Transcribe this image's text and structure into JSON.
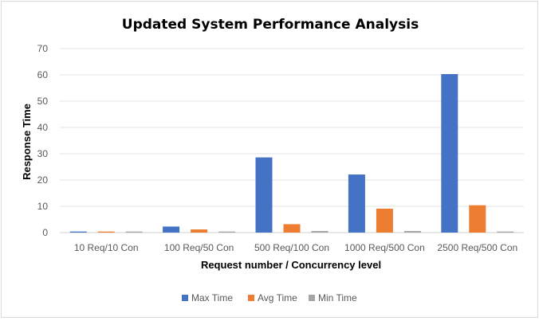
{
  "chart_data": {
    "type": "bar",
    "title": "Updated System Performance Analysis",
    "xlabel": "Request number / Concurrency level",
    "ylabel": "Response Time",
    "ylim": [
      0,
      70
    ],
    "yticks": [
      0,
      10,
      20,
      30,
      40,
      50,
      60,
      70
    ],
    "grid": true,
    "legend_position": "bottom",
    "categories": [
      "10 Req/10 Con",
      "100 Req/50 Con",
      "500 Req/100 Con",
      "1000 Req/500 Con",
      "2500 Req/500 Con"
    ],
    "series": [
      {
        "name": "Max Time",
        "color": "#4472C4",
        "values": [
          0.4,
          2.3,
          28.6,
          22.1,
          60.3
        ]
      },
      {
        "name": "Avg Time",
        "color": "#ED7D31",
        "values": [
          0.4,
          1.2,
          3.2,
          9.1,
          10.4
        ]
      },
      {
        "name": "Min Time",
        "color": "#A5A5A5",
        "values": [
          0.4,
          0.4,
          0.6,
          0.6,
          0.4
        ]
      }
    ]
  }
}
